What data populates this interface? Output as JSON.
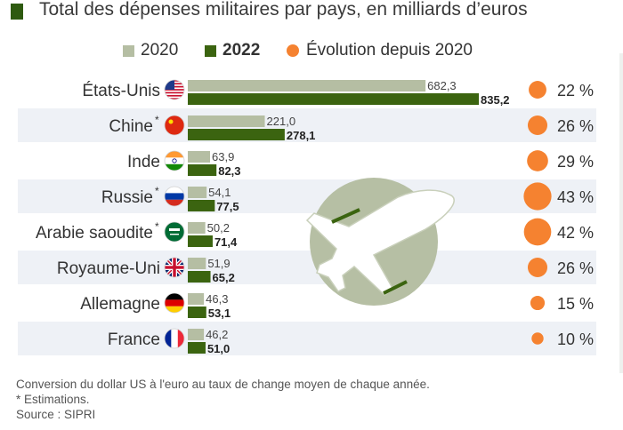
{
  "chart_data": {
    "type": "bar",
    "title": "Total des dépenses militaires par pays, en milliards d’euros",
    "legend": [
      {
        "name": "2020",
        "color": "#b5bea3"
      },
      {
        "name": "2022",
        "color": "#3b6410"
      },
      {
        "name": "Évolution depuis 2020",
        "color": "#f58230"
      }
    ],
    "categories": [
      "États-Unis",
      "Chine",
      "Inde",
      "Russie",
      "Arabie saoudite",
      "Royaume-Uni",
      "Allemagne",
      "France"
    ],
    "asterisk": [
      false,
      true,
      false,
      true,
      true,
      false,
      false,
      false
    ],
    "series": [
      {
        "name": "2020",
        "values": [
          682.3,
          221.0,
          63.9,
          54.1,
          50.2,
          51.9,
          46.3,
          46.2
        ],
        "labels": [
          "682,3",
          "221,0",
          "63,9",
          "54,1",
          "50,2",
          "51,9",
          "46,3",
          "46,2"
        ]
      },
      {
        "name": "2022",
        "values": [
          835.2,
          278.1,
          82.3,
          77.5,
          71.4,
          65.2,
          53.1,
          51.0
        ],
        "labels": [
          "835,2",
          "278,1",
          "82,3",
          "77,5",
          "71,4",
          "65,2",
          "53,1",
          "51,0"
        ]
      }
    ],
    "evolution_pct": [
      22,
      26,
      29,
      43,
      42,
      26,
      15,
      10
    ],
    "evolution_labels": [
      "22 %",
      "26 %",
      "29 %",
      "43 %",
      "42 %",
      "26 %",
      "15 %",
      "10 %"
    ],
    "flags": [
      "us",
      "cn",
      "in",
      "ru",
      "sa",
      "gb",
      "de",
      "fr"
    ]
  },
  "footer": {
    "note": "Conversion du dollar US à l'euro au taux de change moyen de chaque année.",
    "estimates": "* Estimations.",
    "source": "Source : SIPRI"
  },
  "colors": {
    "c2020": "#b5bea3",
    "c2022": "#3b6410",
    "dot": "#f58230",
    "stripe": "#eef1f6",
    "title_mark": "#2e5a10"
  }
}
